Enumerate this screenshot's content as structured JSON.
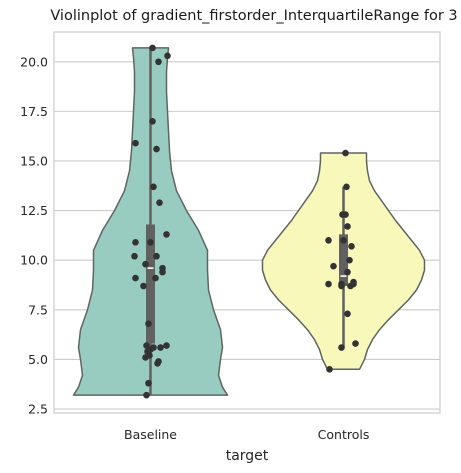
{
  "chart_data": {
    "type": "violin",
    "title": "Violinplot of gradient_firstorder_InterquartileRange for 3",
    "xlabel": "target",
    "ylabel": "",
    "ylim": [
      2.3,
      21.5
    ],
    "yticks": [
      2.5,
      5.0,
      7.5,
      10.0,
      12.5,
      15.0,
      17.5,
      20.0
    ],
    "ytick_labels": [
      "2.5",
      "5.0",
      "7.5",
      "10.0",
      "12.5",
      "15.0",
      "17.5",
      "20.0"
    ],
    "grid": true,
    "categories": [
      "Baseline",
      "Controls"
    ],
    "series": [
      {
        "category": "Baseline",
        "color": "#98ccc1",
        "min": 3.2,
        "q1": 5.8,
        "median": 9.6,
        "q3": 11.8,
        "max": 20.7,
        "whisker_low": 3.2,
        "whisker_high": 20.7,
        "density_profile": [
          {
            "y": 3.2,
            "half_width": 0.77
          },
          {
            "y": 3.6,
            "half_width": 0.72
          },
          {
            "y": 4.2,
            "half_width": 0.68
          },
          {
            "y": 5.0,
            "half_width": 0.7
          },
          {
            "y": 5.6,
            "half_width": 0.72
          },
          {
            "y": 6.5,
            "half_width": 0.7
          },
          {
            "y": 7.5,
            "half_width": 0.63
          },
          {
            "y": 8.5,
            "half_width": 0.58
          },
          {
            "y": 9.5,
            "half_width": 0.57
          },
          {
            "y": 10.5,
            "half_width": 0.57
          },
          {
            "y": 11.5,
            "half_width": 0.48
          },
          {
            "y": 12.5,
            "half_width": 0.36
          },
          {
            "y": 13.5,
            "half_width": 0.26
          },
          {
            "y": 14.5,
            "half_width": 0.21
          },
          {
            "y": 15.5,
            "half_width": 0.19
          },
          {
            "y": 16.5,
            "half_width": 0.18
          },
          {
            "y": 17.5,
            "half_width": 0.17
          },
          {
            "y": 18.5,
            "half_width": 0.16
          },
          {
            "y": 19.5,
            "half_width": 0.16
          },
          {
            "y": 20.2,
            "half_width": 0.17
          },
          {
            "y": 20.7,
            "half_width": 0.18
          }
        ],
        "points": [
          {
            "x": 0.02,
            "y": 20.7
          },
          {
            "x": 0.17,
            "y": 20.3
          },
          {
            "x": 0.08,
            "y": 20.0
          },
          {
            "x": 0.02,
            "y": 17.0
          },
          {
            "x": -0.15,
            "y": 15.9
          },
          {
            "x": 0.06,
            "y": 15.6
          },
          {
            "x": 0.03,
            "y": 13.7
          },
          {
            "x": 0.09,
            "y": 12.9
          },
          {
            "x": 0.16,
            "y": 11.3
          },
          {
            "x": -0.15,
            "y": 10.9
          },
          {
            "x": 0.0,
            "y": 10.9
          },
          {
            "x": -0.16,
            "y": 10.2
          },
          {
            "x": 0.06,
            "y": 10.2
          },
          {
            "x": -0.05,
            "y": 9.8
          },
          {
            "x": 0.12,
            "y": 9.6
          },
          {
            "x": 0.12,
            "y": 9.4
          },
          {
            "x": -0.15,
            "y": 9.1
          },
          {
            "x": 0.05,
            "y": 9.1
          },
          {
            "x": -0.07,
            "y": 8.7
          },
          {
            "x": -0.02,
            "y": 6.8
          },
          {
            "x": 0.16,
            "y": 5.7
          },
          {
            "x": -0.04,
            "y": 5.7
          },
          {
            "x": 0.1,
            "y": 5.6
          },
          {
            "x": 0.03,
            "y": 5.6
          },
          {
            "x": 0.0,
            "y": 5.5
          },
          {
            "x": -0.03,
            "y": 5.4
          },
          {
            "x": -0.01,
            "y": 5.2
          },
          {
            "x": -0.05,
            "y": 5.1
          },
          {
            "x": 0.08,
            "y": 4.9
          },
          {
            "x": 0.07,
            "y": 4.8
          },
          {
            "x": -0.02,
            "y": 3.8
          },
          {
            "x": -0.04,
            "y": 3.2
          }
        ]
      },
      {
        "category": "Controls",
        "color": "#f8f8bb",
        "min": 4.5,
        "q1": 8.7,
        "median": 9.2,
        "q3": 11.3,
        "max": 15.4,
        "whisker_low": 5.6,
        "whisker_high": 13.7,
        "density_profile": [
          {
            "y": 4.5,
            "half_width": 0.16
          },
          {
            "y": 5.0,
            "half_width": 0.21
          },
          {
            "y": 5.5,
            "half_width": 0.24
          },
          {
            "y": 6.0,
            "half_width": 0.29
          },
          {
            "y": 6.5,
            "half_width": 0.36
          },
          {
            "y": 7.0,
            "half_width": 0.45
          },
          {
            "y": 7.5,
            "half_width": 0.55
          },
          {
            "y": 8.0,
            "half_width": 0.65
          },
          {
            "y": 8.5,
            "half_width": 0.73
          },
          {
            "y": 9.0,
            "half_width": 0.78
          },
          {
            "y": 9.5,
            "half_width": 0.81
          },
          {
            "y": 10.0,
            "half_width": 0.81
          },
          {
            "y": 10.5,
            "half_width": 0.76
          },
          {
            "y": 11.0,
            "half_width": 0.68
          },
          {
            "y": 11.5,
            "half_width": 0.6
          },
          {
            "y": 12.0,
            "half_width": 0.52
          },
          {
            "y": 12.5,
            "half_width": 0.45
          },
          {
            "y": 13.0,
            "half_width": 0.38
          },
          {
            "y": 13.5,
            "half_width": 0.31
          },
          {
            "y": 14.0,
            "half_width": 0.26
          },
          {
            "y": 14.5,
            "half_width": 0.24
          },
          {
            "y": 15.0,
            "half_width": 0.23
          },
          {
            "y": 15.4,
            "half_width": 0.23
          }
        ],
        "points": [
          {
            "x": 0.02,
            "y": 15.4
          },
          {
            "x": 0.03,
            "y": 13.7
          },
          {
            "x": 0.02,
            "y": 12.3
          },
          {
            "x": -0.01,
            "y": 12.3
          },
          {
            "x": 0.04,
            "y": 11.7
          },
          {
            "x": -0.15,
            "y": 11.0
          },
          {
            "x": 0.0,
            "y": 11.0
          },
          {
            "x": 0.08,
            "y": 10.7
          },
          {
            "x": 0.06,
            "y": 10.0
          },
          {
            "x": -0.1,
            "y": 9.7
          },
          {
            "x": 0.04,
            "y": 9.4
          },
          {
            "x": 0.1,
            "y": 8.9
          },
          {
            "x": -0.02,
            "y": 8.8
          },
          {
            "x": -0.15,
            "y": 8.8
          },
          {
            "x": 0.1,
            "y": 8.8
          },
          {
            "x": -0.02,
            "y": 8.7
          },
          {
            "x": 0.07,
            "y": 8.7
          },
          {
            "x": 0.04,
            "y": 7.3
          },
          {
            "x": 0.12,
            "y": 5.8
          },
          {
            "x": -0.02,
            "y": 5.6
          },
          {
            "x": -0.14,
            "y": 4.5
          }
        ]
      }
    ]
  },
  "colors": {
    "grid": "#cccccc",
    "axes_edge": "#cccccc",
    "violin_edge": "#5f6662",
    "box": "#616161",
    "median": "#ffffff",
    "point": "#333333"
  }
}
